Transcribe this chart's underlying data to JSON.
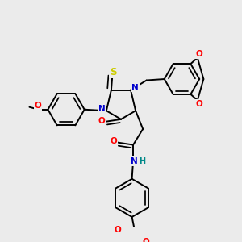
{
  "background_color": "#ebebeb",
  "atom_colors": {
    "C": "#000000",
    "N": "#0000cc",
    "O": "#ff0000",
    "S": "#cccc00",
    "H": "#008888"
  },
  "bond_color": "#000000",
  "figsize": [
    3.0,
    3.0
  ],
  "dpi": 100
}
